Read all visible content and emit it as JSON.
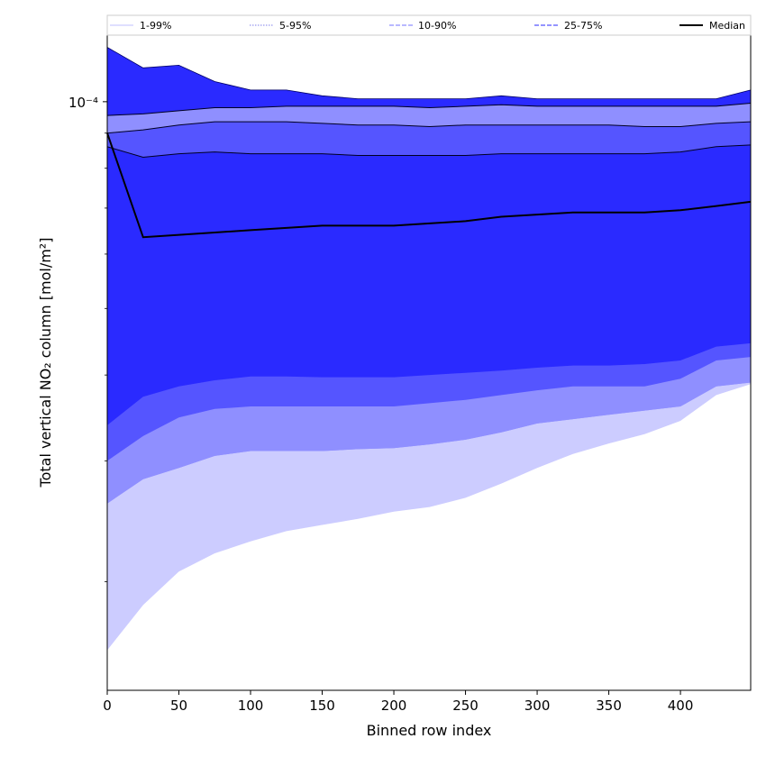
{
  "chart_data": {
    "type": "area",
    "title": "",
    "xlabel": "Binned row index",
    "ylabel": "Total vertical NO₂ column [mol/m²]",
    "xlim": [
      0,
      449
    ],
    "ylim": [
      1.39e-05,
      0.000125
    ],
    "yscale": "log",
    "xticks": [
      0,
      50,
      100,
      150,
      200,
      250,
      300,
      350,
      400
    ],
    "ytick_label": "10⁻⁴",
    "ytick_value": 0.0001,
    "legend_position": "top, horizontal",
    "grid": false,
    "x": [
      0,
      25,
      50,
      75,
      100,
      125,
      150,
      175,
      200,
      225,
      250,
      275,
      300,
      325,
      350,
      375,
      400,
      425,
      449
    ],
    "bands": [
      {
        "name": "1-99%",
        "fill": "#ccccff",
        "lower": [
          1.59e-05,
          1.85e-05,
          2.07e-05,
          2.2e-05,
          2.29e-05,
          2.37e-05,
          2.42e-05,
          2.47e-05,
          2.53e-05,
          2.57e-05,
          2.65e-05,
          2.78e-05,
          2.93e-05,
          3.07e-05,
          3.18e-05,
          3.28e-05,
          3.43e-05,
          3.74e-05,
          3.88e-05
        ],
        "upper": [
          0.00012,
          0.000112,
          0.000113,
          0.000107,
          0.000104,
          0.000104,
          0.000102,
          0.000101,
          0.000101,
          0.000101,
          0.000101,
          0.000102,
          0.000101,
          0.000101,
          0.000101,
          0.000101,
          0.000101,
          0.000101,
          0.000104
        ]
      },
      {
        "name": "5-95%",
        "fill": "#8f8fff",
        "lower": [
          2.6e-05,
          2.82e-05,
          2.93e-05,
          3.05e-05,
          3.1e-05,
          3.1e-05,
          3.1e-05,
          3.12e-05,
          3.13e-05,
          3.17e-05,
          3.22e-05,
          3.3e-05,
          3.4e-05,
          3.45e-05,
          3.5e-05,
          3.55e-05,
          3.6e-05,
          3.85e-05,
          3.9e-05
        ]
      },
      {
        "name": "10-90%",
        "fill": "#5555ff",
        "lower": [
          3e-05,
          3.26e-05,
          3.47e-05,
          3.57e-05,
          3.6e-05,
          3.6e-05,
          3.6e-05,
          3.6e-05,
          3.6e-05,
          3.64e-05,
          3.68e-05,
          3.74e-05,
          3.8e-05,
          3.85e-05,
          3.85e-05,
          3.85e-05,
          3.95e-05,
          4.2e-05,
          4.25e-05
        ]
      },
      {
        "name": "25-75%",
        "fill": "#2a2aff",
        "lower": [
          3.38e-05,
          3.72e-05,
          3.85e-05,
          3.93e-05,
          3.98e-05,
          3.98e-05,
          3.97e-05,
          3.97e-05,
          3.97e-05,
          4e-05,
          4.03e-05,
          4.06e-05,
          4.1e-05,
          4.13e-05,
          4.13e-05,
          4.15e-05,
          4.2e-05,
          4.4e-05,
          4.45e-05
        ]
      }
    ],
    "quantile_lines": [
      {
        "name": "95%",
        "values": [
          9.55e-05,
          9.6e-05,
          9.7e-05,
          9.8e-05,
          9.8e-05,
          9.85e-05,
          9.85e-05,
          9.85e-05,
          9.85e-05,
          9.8e-05,
          9.85e-05,
          9.9e-05,
          9.85e-05,
          9.85e-05,
          9.85e-05,
          9.85e-05,
          9.85e-05,
          9.85e-05,
          9.95e-05
        ]
      },
      {
        "name": "90%",
        "values": [
          9e-05,
          9.1e-05,
          9.25e-05,
          9.35e-05,
          9.35e-05,
          9.35e-05,
          9.3e-05,
          9.25e-05,
          9.25e-05,
          9.2e-05,
          9.25e-05,
          9.25e-05,
          9.25e-05,
          9.25e-05,
          9.25e-05,
          9.2e-05,
          9.2e-05,
          9.3e-05,
          9.35e-05
        ]
      },
      {
        "name": "75%",
        "values": [
          8.6e-05,
          8.3e-05,
          8.4e-05,
          8.45e-05,
          8.4e-05,
          8.4e-05,
          8.4e-05,
          8.35e-05,
          8.35e-05,
          8.35e-05,
          8.35e-05,
          8.4e-05,
          8.4e-05,
          8.4e-05,
          8.4e-05,
          8.4e-05,
          8.45e-05,
          8.6e-05,
          8.65e-05
        ]
      }
    ],
    "median": [
      9e-05,
      6.35e-05,
      6.4e-05,
      6.45e-05,
      6.5e-05,
      6.55e-05,
      6.6e-05,
      6.6e-05,
      6.6e-05,
      6.65e-05,
      6.7e-05,
      6.8e-05,
      6.85e-05,
      6.9e-05,
      6.9e-05,
      6.9e-05,
      6.95e-05,
      7.05e-05,
      7.15e-05
    ],
    "series": [
      {
        "name": "1-99%",
        "style": "solid",
        "color": "#ccccff"
      },
      {
        "name": "5-95%",
        "style": "dotted",
        "color": "#9999ee"
      },
      {
        "name": "10-90%",
        "style": "dashed",
        "color": "#8f8fff"
      },
      {
        "name": "25-75%",
        "style": "dashed",
        "color": "#5555ff"
      },
      {
        "name": "Median",
        "style": "solid",
        "color": "#000000"
      }
    ]
  }
}
